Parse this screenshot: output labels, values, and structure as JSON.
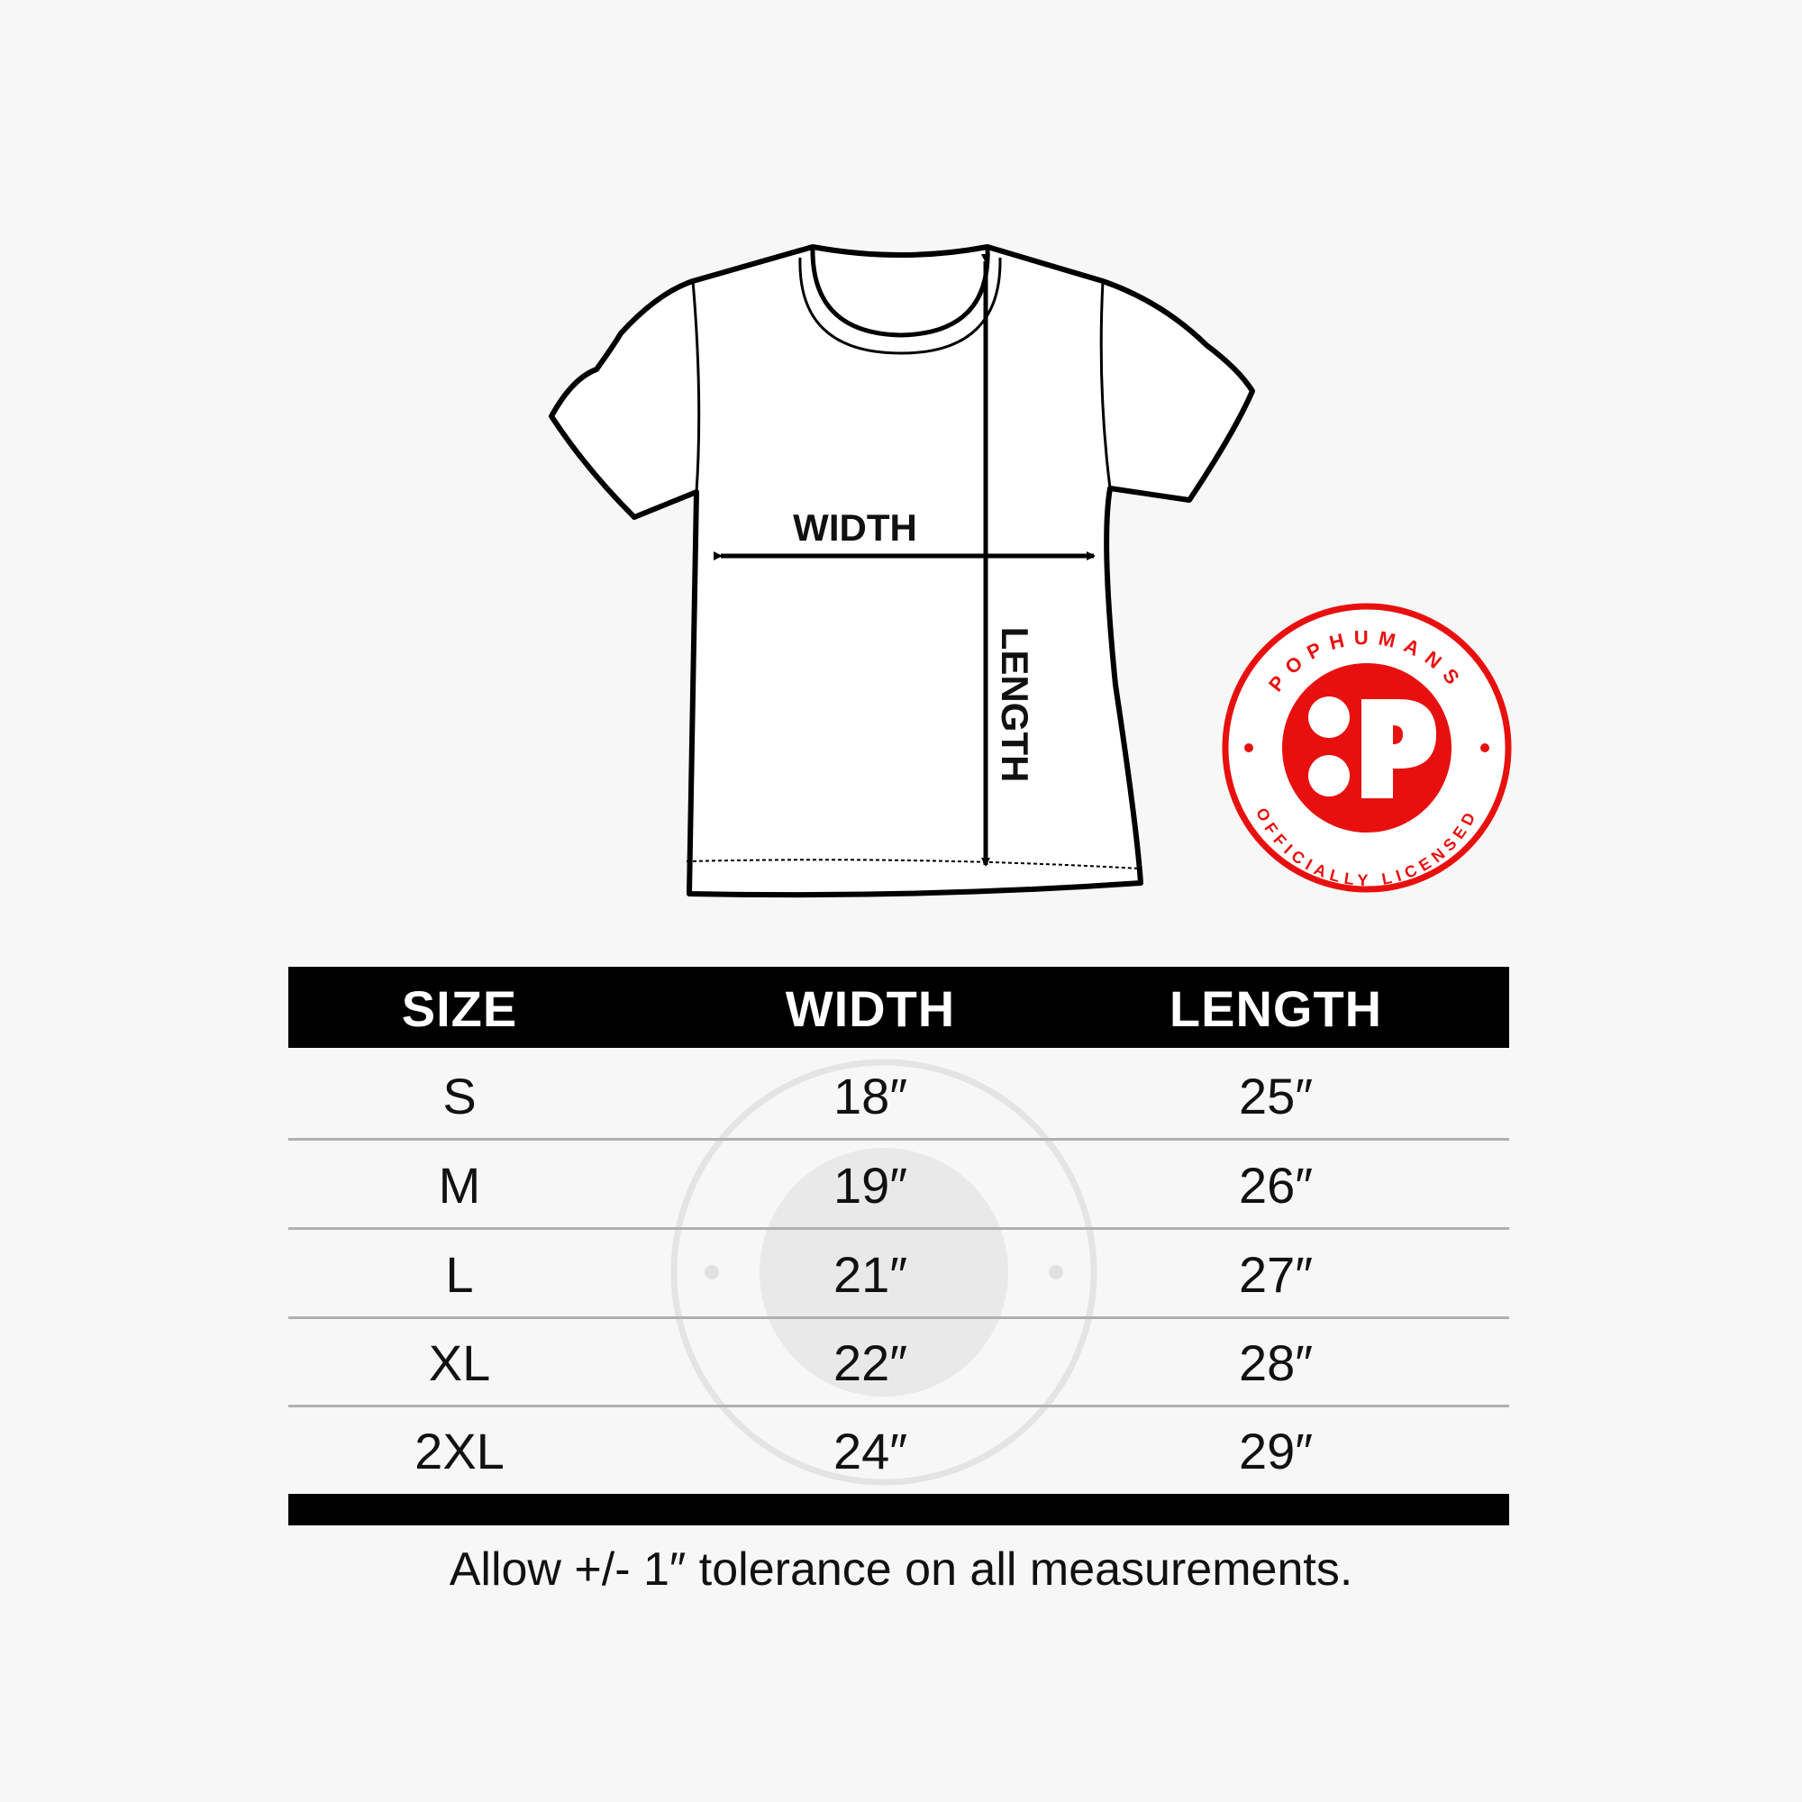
{
  "diagram": {
    "width_label": "WIDTH",
    "length_label": "LENGTH"
  },
  "badge": {
    "top_text": "POPHUMANS",
    "bottom_text": "OFFICIALLY LICENSED",
    "color": "#e8100f"
  },
  "table": {
    "headers": [
      "SIZE",
      "WIDTH",
      "LENGTH"
    ],
    "rows": [
      [
        "S",
        "18″",
        "25″"
      ],
      [
        "M",
        "19″",
        "26″"
      ],
      [
        "L",
        "21″",
        "27″"
      ],
      [
        "XL",
        "22″",
        "28″"
      ],
      [
        "2XL",
        "24″",
        "29″"
      ]
    ]
  },
  "footer": "Allow +/- 1″ tolerance on all measurements."
}
